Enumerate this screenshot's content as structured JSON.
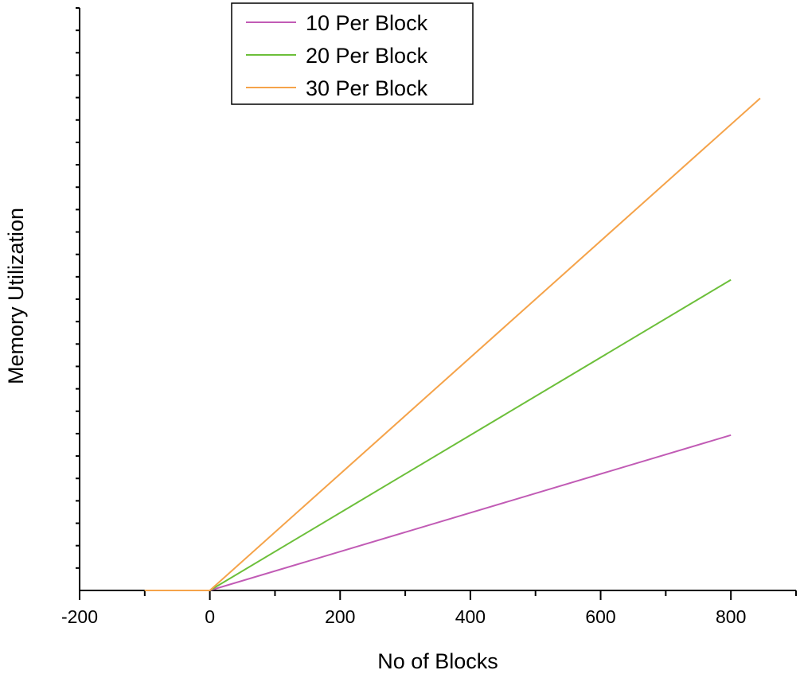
{
  "chart_data": {
    "type": "line",
    "title": "",
    "xlabel": "No of Blocks",
    "ylabel": "Memory Utilization",
    "xlim": [
      -200,
      900
    ],
    "ylim": [
      0,
      30000
    ],
    "xticks": [
      -200,
      0,
      200,
      400,
      600,
      800
    ],
    "xticks_minor_step": 100,
    "y_tick_labels_shown": false,
    "y_minor_tick_count": 26,
    "grid": false,
    "legend": "top-center",
    "series": [
      {
        "name": "10 Per Block",
        "color": "#c15bb5",
        "points": [
          [
            -100,
            0
          ],
          [
            0,
            0
          ],
          [
            800,
            8000
          ]
        ]
      },
      {
        "name": "20 Per Block",
        "color": "#6cbf3a",
        "points": [
          [
            -100,
            0
          ],
          [
            0,
            0
          ],
          [
            800,
            16000
          ]
        ]
      },
      {
        "name": "30 Per Block",
        "color": "#f5a34a",
        "points": [
          [
            -100,
            0
          ],
          [
            0,
            0
          ],
          [
            845,
            25350
          ]
        ]
      }
    ]
  }
}
